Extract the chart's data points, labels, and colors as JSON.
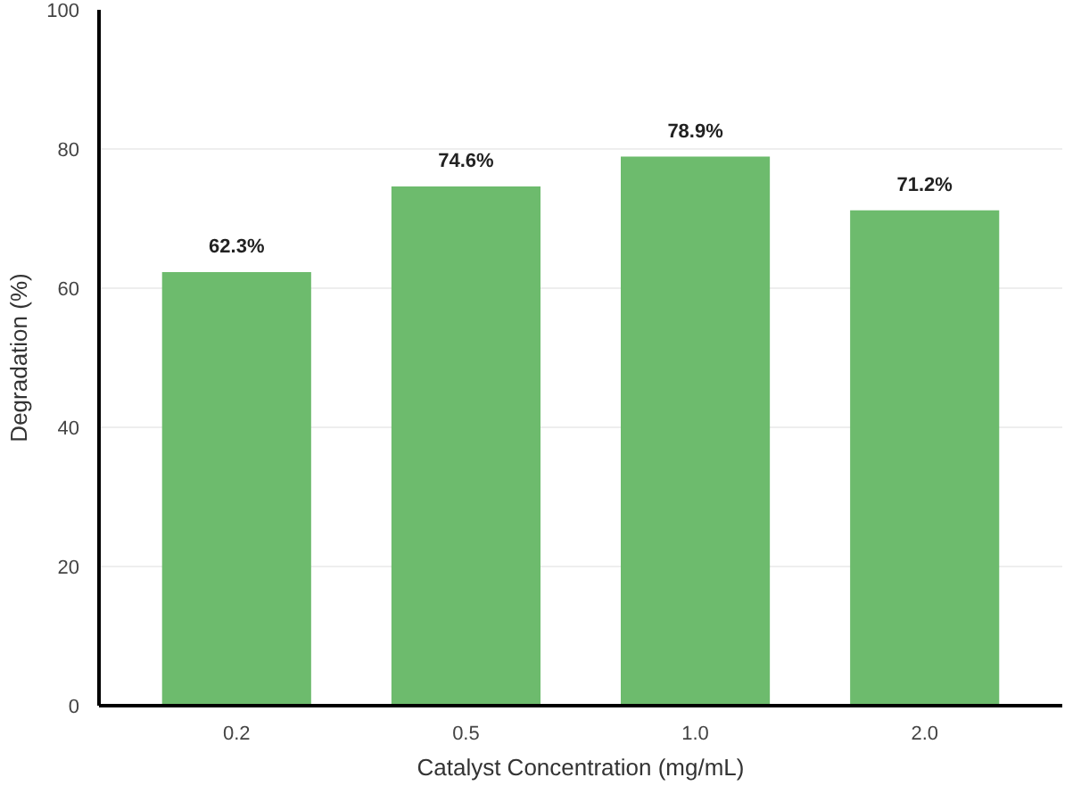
{
  "chart_data": {
    "type": "bar",
    "xlabel": "Catalyst Concentration (mg/mL)",
    "ylabel": "Degradation (%)",
    "categories": [
      "0.2",
      "0.5",
      "1.0",
      "2.0"
    ],
    "values": [
      62.3,
      74.6,
      78.9,
      71.2
    ],
    "value_labels": [
      "62.3%",
      "74.6%",
      "78.9%",
      "71.2%"
    ],
    "color": "#6dbb6d",
    "ylim": [
      0,
      100
    ],
    "yticks": [
      0,
      20,
      40,
      60,
      80,
      100
    ],
    "grid": "y"
  }
}
